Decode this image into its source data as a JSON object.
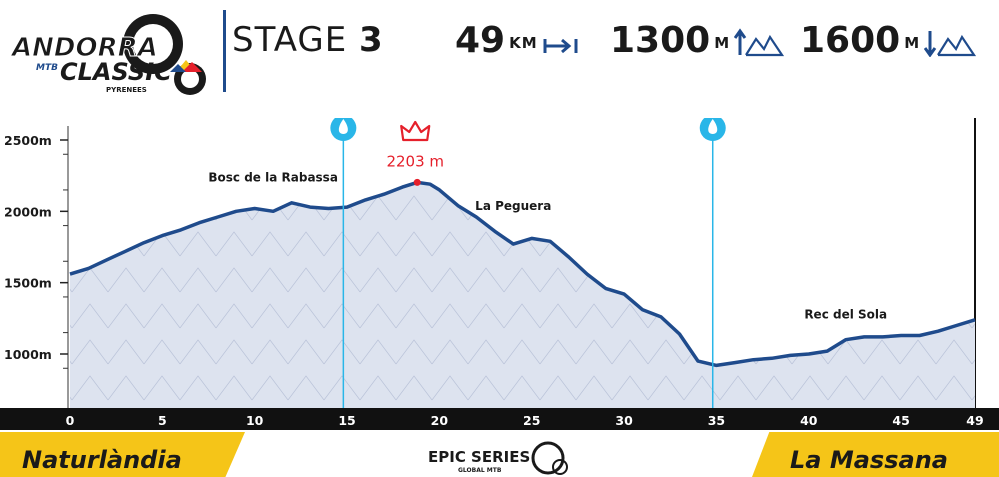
{
  "header": {
    "logo": {
      "line1": "ANDORRA",
      "mtb": "MTB",
      "line2": "CLASSIC",
      "region": "PYRENEES"
    },
    "stage_label": "STAGE",
    "stage_number": "3",
    "distance": {
      "value": "49",
      "unit": "KM",
      "icon": "distance-arrow-icon"
    },
    "ascent": {
      "value": "1300",
      "unit": "M",
      "icon": "ascent-mountain-icon"
    },
    "descent": {
      "value": "1600",
      "unit": "M",
      "icon": "descent-mountain-icon"
    }
  },
  "colors": {
    "profile_line": "#1f4b8c",
    "profile_fill": "#dde3ef",
    "water_marker": "#29b6e8",
    "summit_marker": "#e5202b",
    "band_yellow": "#f5c518",
    "axis_bar": "#111111"
  },
  "chart_data": {
    "type": "area",
    "xlabel": "",
    "ylabel": "",
    "xlim": [
      0,
      49
    ],
    "ylim": [
      800,
      2600
    ],
    "x_ticks": [
      0,
      5,
      10,
      15,
      20,
      25,
      30,
      35,
      40,
      45,
      49
    ],
    "y_ticks": [
      {
        "value": 2500,
        "label": "2500m"
      },
      {
        "value": 2000,
        "label": "2000m"
      },
      {
        "value": 1500,
        "label": "1500m"
      },
      {
        "value": 1000,
        "label": "1000m"
      }
    ],
    "series": [
      {
        "x": [
          0,
          1,
          2,
          3,
          4,
          5,
          6,
          7,
          8,
          9,
          10,
          11,
          12,
          13,
          14,
          15,
          16,
          17,
          18,
          18.8,
          19.5,
          20,
          21,
          22,
          23,
          24,
          25,
          26,
          27,
          28,
          29,
          30,
          31,
          32,
          33,
          34,
          35,
          36,
          37,
          38,
          39,
          40,
          41,
          42,
          43,
          44,
          45,
          46,
          47,
          48,
          49
        ],
        "y": [
          1560,
          1600,
          1660,
          1720,
          1780,
          1830,
          1870,
          1920,
          1960,
          2000,
          2020,
          2000,
          2060,
          2030,
          2020,
          2030,
          2080,
          2120,
          2170,
          2203,
          2190,
          2150,
          2040,
          1960,
          1860,
          1770,
          1810,
          1790,
          1680,
          1560,
          1460,
          1420,
          1310,
          1260,
          1140,
          950,
          920,
          940,
          960,
          970,
          990,
          1000,
          1020,
          1100,
          1120,
          1120,
          1130,
          1130,
          1160,
          1200,
          1240
        ]
      }
    ],
    "annotations": [
      {
        "kind": "summit",
        "x": 18.8,
        "y": 2203,
        "label": "2203 m",
        "icon": "crown-icon"
      },
      {
        "kind": "water",
        "x": 14.8,
        "icon": "water-drop-icon"
      },
      {
        "kind": "water",
        "x": 34.8,
        "icon": "water-drop-icon"
      },
      {
        "kind": "place",
        "x": 11,
        "y": 2210,
        "label": "Bosc de la Rabassa"
      },
      {
        "kind": "place",
        "x": 24,
        "y": 2010,
        "label": "La Peguera"
      },
      {
        "kind": "place",
        "x": 42,
        "y": 1250,
        "label": "Rec del Sola"
      }
    ]
  },
  "footer": {
    "start": "Naturlàndia",
    "end": "La Massana",
    "brand": "EPIC SERIES",
    "brand_sub": "GLOBAL MTB"
  }
}
